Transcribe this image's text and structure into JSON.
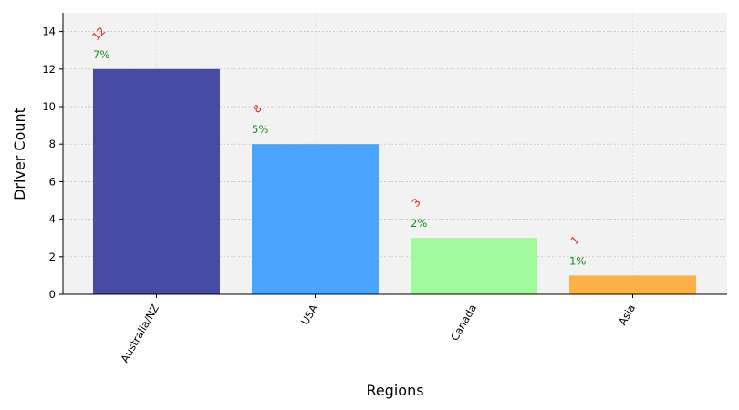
{
  "chart_data": {
    "type": "bar",
    "xlabel": "Regions",
    "ylabel": "Driver Count",
    "categories": [
      "Australia/NZ",
      "USA",
      "Canada",
      "Asia"
    ],
    "values": [
      12,
      8,
      3,
      1
    ],
    "count_labels": [
      "12",
      "8",
      "3",
      "1"
    ],
    "percent_labels": [
      "7%",
      "5%",
      "2%",
      "1%"
    ],
    "ylim": [
      0,
      15
    ],
    "yticks": [
      "0",
      "2",
      "4",
      "6",
      "8",
      "10",
      "12",
      "14"
    ],
    "grid": true,
    "colors": {
      "bars": [
        "#474ba3",
        "#48a4fc",
        "#a0fa9c",
        "#fcb045"
      ],
      "background": "#f2f2f2",
      "grid": "#bbbbbb",
      "count_label": "#e8201c",
      "percent_label": "#1a8a1a"
    }
  }
}
